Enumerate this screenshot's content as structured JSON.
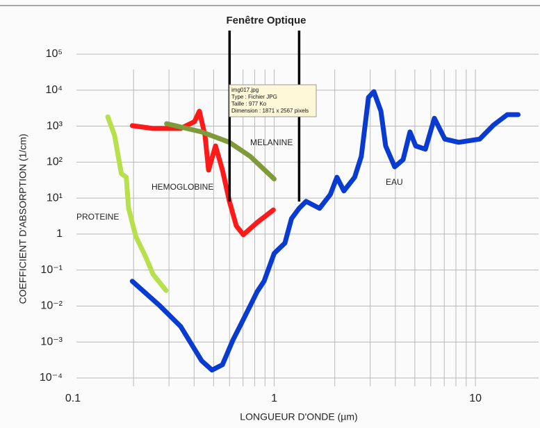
{
  "chart_data": {
    "type": "line",
    "xlabel": "LONGUEUR D'ONDE (µm)",
    "ylabel": "COEFFICIENT D'ABSORPTION (1/cm)",
    "log_x": true,
    "log_y": true,
    "grid": true,
    "xlim": [
      0.1,
      18
    ],
    "ylim": [
      0.0001,
      100000
    ],
    "xticks": [
      0.1,
      1,
      10
    ],
    "xminor": [
      0.2,
      0.3,
      0.4,
      0.5,
      0.6,
      0.7,
      0.8,
      0.9,
      2,
      3,
      4,
      5,
      6,
      7,
      8,
      9
    ],
    "yticks": [
      {
        "value": 0.0001,
        "label": "10⁻⁴"
      },
      {
        "value": 0.001,
        "label": "10⁻³"
      },
      {
        "value": 0.01,
        "label": "10⁻²"
      },
      {
        "value": 0.1,
        "label": "10⁻¹"
      },
      1,
      {
        "value": 10,
        "label": "10¹"
      },
      {
        "value": 100,
        "label": "10²"
      },
      {
        "value": 1000,
        "label": "10³"
      },
      {
        "value": 10000,
        "label": "10⁴"
      },
      {
        "value": 100000,
        "label": "10⁵"
      }
    ],
    "series": [
      {
        "name": "PROTEINE",
        "color": "#b8e04c",
        "x": [
          0.149,
          0.161,
          0.174,
          0.184,
          0.189,
          0.205,
          0.23,
          0.25,
          0.29
        ],
        "values": [
          1820,
          550,
          48,
          38,
          5.2,
          0.87,
          0.23,
          0.076,
          0.027
        ]
      },
      {
        "name": "HEMOGLOBINE",
        "color": "#ff1a1a",
        "x": [
          0.197,
          0.25,
          0.343,
          0.402,
          0.425,
          0.453,
          0.472,
          0.511,
          0.553,
          0.599,
          0.648,
          0.702,
          0.823,
          0.99
        ],
        "values": [
          1030,
          860,
          860,
          1340,
          2610,
          550,
          60,
          282,
          60,
          8.1,
          1.7,
          0.96,
          2.1,
          4.7
        ]
      },
      {
        "name": "MELANINE",
        "color": "#7f9a3a",
        "x": [
          0.292,
          0.436,
          0.599,
          0.76,
          1.0
        ],
        "values": [
          1170,
          690,
          355,
          145,
          34
        ]
      },
      {
        "name": "EAU",
        "color": "#0a3bd0",
        "x": [
          0.197,
          0.27,
          0.343,
          0.436,
          0.491,
          0.553,
          0.623,
          0.675,
          0.76,
          0.823,
          0.891,
          1.0,
          1.13,
          1.22,
          1.33,
          1.44,
          1.68,
          1.9,
          2.05,
          2.22,
          2.51,
          2.71,
          2.94,
          3.13,
          3.39,
          3.58,
          3.97,
          4.37,
          4.73,
          5.05,
          5.64,
          6.25,
          7.05,
          8.26,
          10.5,
          12.3,
          14.4,
          16.3
        ],
        "values": [
          0.049,
          0.0102,
          0.0027,
          0.0003,
          0.000166,
          0.000234,
          0.00112,
          0.0027,
          0.0102,
          0.025,
          0.049,
          0.29,
          0.56,
          2.7,
          5.2,
          8.1,
          5.2,
          12.6,
          38,
          15.8,
          38,
          145,
          6300,
          9100,
          2600,
          282,
          74,
          117,
          690,
          282,
          229,
          1660,
          437,
          355,
          437,
          1070,
          2090,
          2090
        ]
      }
    ],
    "window": {
      "label": "Fenêtre Optique",
      "x": [
        0.6,
        1.33
      ],
      "y_bottom": [
        8,
        8
      ]
    },
    "tooltip": {
      "lines": [
        "img017.jpg",
        "Type : Fichier JPG",
        "Taille : 977 Ko",
        "Dimension : 1871 x 2567 pixels"
      ]
    }
  }
}
